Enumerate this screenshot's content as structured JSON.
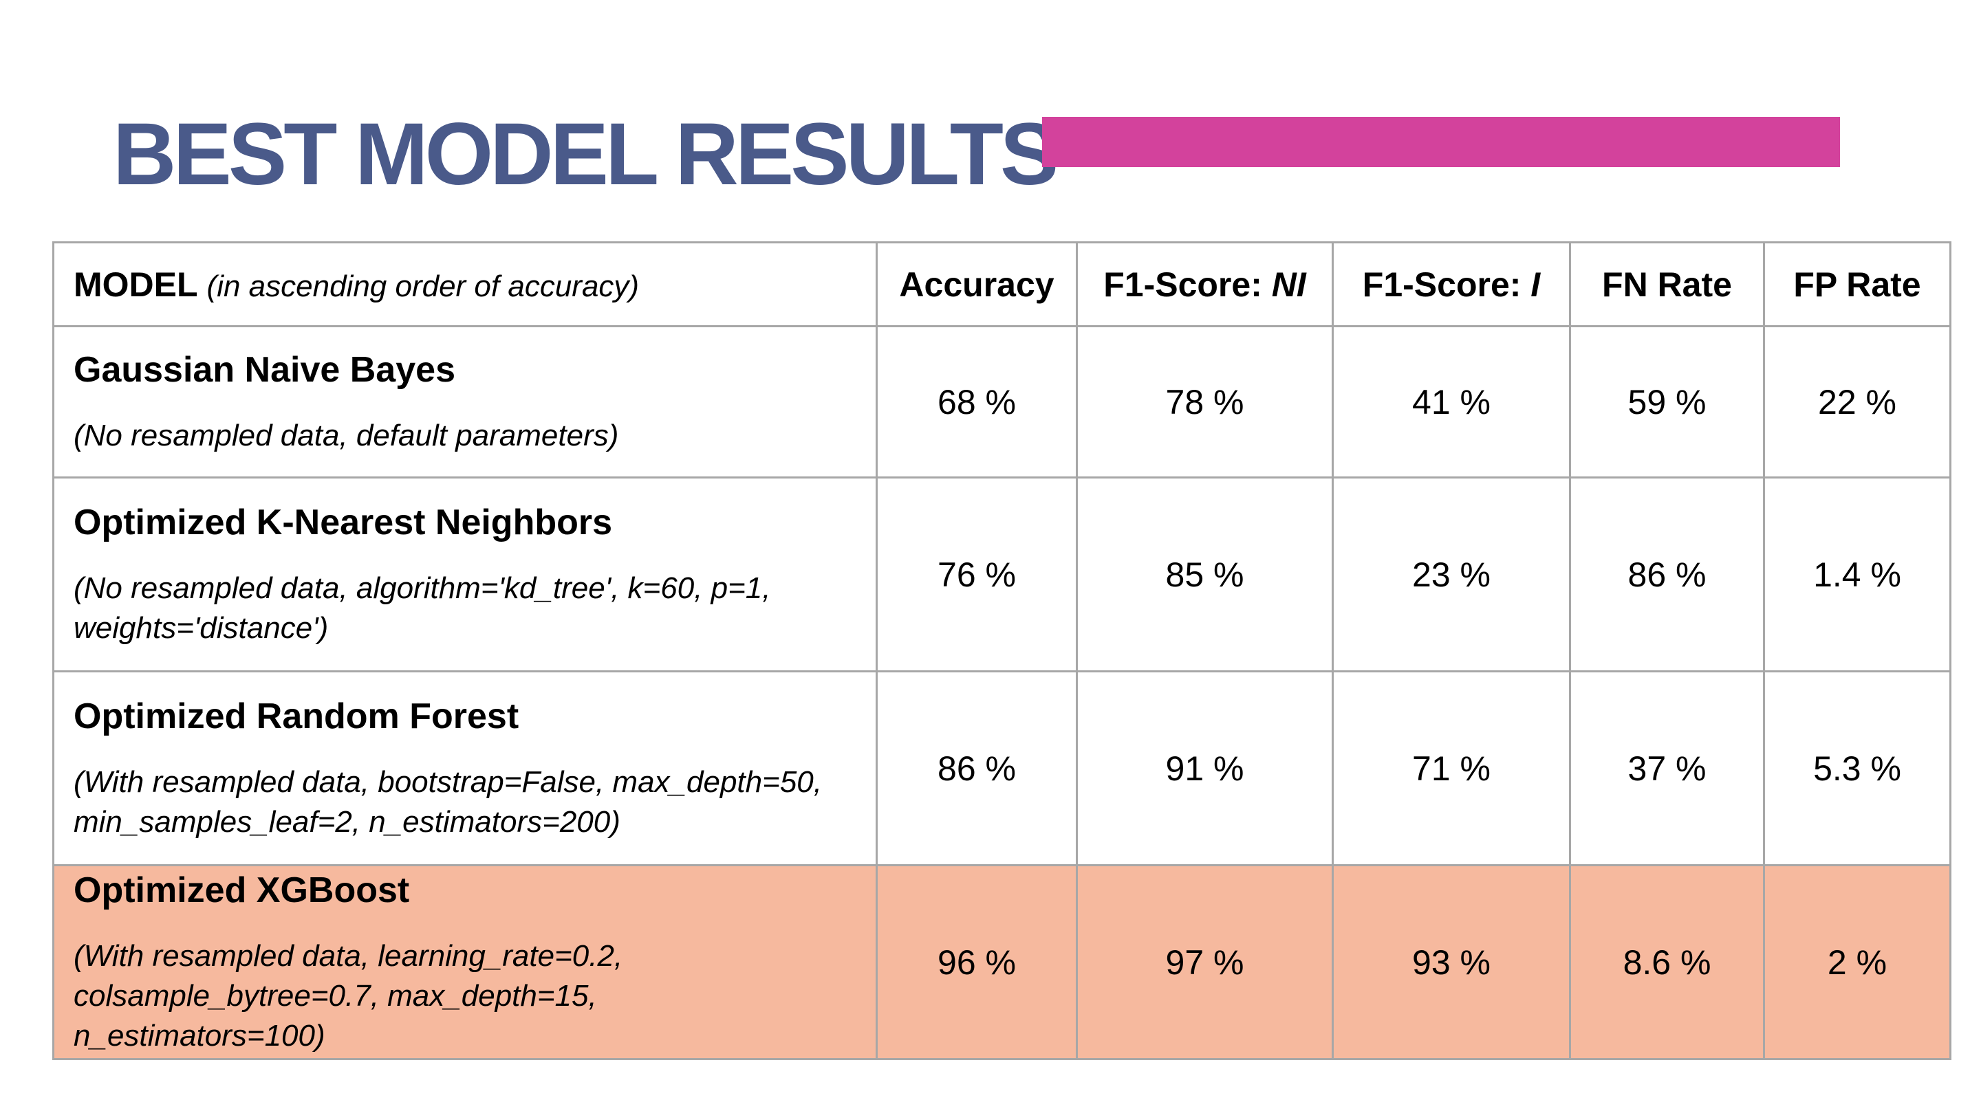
{
  "title": "BEST MODEL RESULTS",
  "colors": {
    "title": "#4a5a8a",
    "accent_bar": "#d3429c",
    "highlight_row": "#f6b99e",
    "grid": "#a7a7a7"
  },
  "table": {
    "header": {
      "model": "MODEL",
      "model_note": "(in ascending order of accuracy)",
      "accuracy": "Accuracy",
      "f1_ni_prefix": "F1-Score: ",
      "f1_ni_suffix": "NI",
      "f1_i_prefix": "F1-Score: ",
      "f1_i_suffix": "I",
      "fn_rate": "FN Rate",
      "fp_rate": "FP Rate"
    },
    "rows": [
      {
        "name": "Gaussian Naive Bayes",
        "params": "(No resampled data, default parameters)",
        "accuracy": "68 %",
        "f1_ni": "78 %",
        "f1_i": "41 %",
        "fn_rate": "59 %",
        "fp_rate": "22 %"
      },
      {
        "name": "Optimized K-Nearest Neighbors",
        "params": "(No resampled data, algorithm='kd_tree', k=60, p=1, weights='distance')",
        "accuracy": "76 %",
        "f1_ni": "85 %",
        "f1_i": "23 %",
        "fn_rate": "86 %",
        "fp_rate": "1.4 %"
      },
      {
        "name": "Optimized Random Forest",
        "params": "(With resampled data, bootstrap=False, max_depth=50, min_samples_leaf=2,  n_estimators=200)",
        "accuracy": "86 %",
        "f1_ni": "91 %",
        "f1_i": "71 %",
        "fn_rate": "37 %",
        "fp_rate": "5.3 %"
      },
      {
        "name": "Optimized XGBoost",
        "params": "(With resampled data, learning_rate=0.2, colsample_bytree=0.7, max_depth=15, n_estimators=100)",
        "accuracy": "96 %",
        "f1_ni": "97 %",
        "f1_i": "93 %",
        "fn_rate": "8.6 %",
        "fp_rate": "2 %"
      }
    ]
  }
}
